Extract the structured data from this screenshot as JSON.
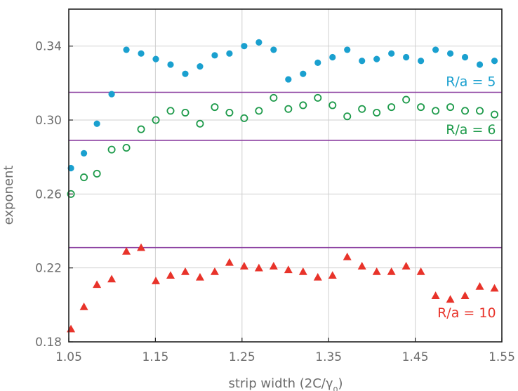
{
  "chart_data": {
    "type": "scatter",
    "title": "",
    "xlabel": "strip width (2C/γ₀)",
    "ylabel": "exponent",
    "xlim": [
      1.05,
      1.55
    ],
    "ylim": [
      0.18,
      0.36
    ],
    "xticks": [
      "1.05",
      "1.15",
      "1.25",
      "1.35",
      "1.45",
      "1.55"
    ],
    "yticks": [
      "0.18",
      "0.22",
      "0.26",
      "0.30",
      "0.34"
    ],
    "grid": true,
    "colors": {
      "axis": "#222222",
      "grid": "#cfcfcf",
      "text": "#6d6d6d",
      "reference_line": "#8b3fa0"
    },
    "reference_lines": [
      0.315,
      0.289,
      0.231
    ],
    "series": [
      {
        "name": "R/a = 5",
        "marker": "filled-circle",
        "color": "#1aa0cf",
        "points": [
          [
            1.0525,
            0.274
          ],
          [
            1.0675,
            0.282
          ],
          [
            1.0825,
            0.298
          ],
          [
            1.0995,
            0.314
          ],
          [
            1.1165,
            0.338
          ],
          [
            1.1335,
            0.336
          ],
          [
            1.1505,
            0.333
          ],
          [
            1.1675,
            0.33
          ],
          [
            1.1845,
            0.325
          ],
          [
            1.2015,
            0.329
          ],
          [
            1.2185,
            0.335
          ],
          [
            1.2355,
            0.336
          ],
          [
            1.2525,
            0.34
          ],
          [
            1.2695,
            0.342
          ],
          [
            1.2865,
            0.338
          ],
          [
            1.3035,
            0.322
          ],
          [
            1.3205,
            0.325
          ],
          [
            1.3375,
            0.331
          ],
          [
            1.3545,
            0.334
          ],
          [
            1.3715,
            0.338
          ],
          [
            1.3885,
            0.332
          ],
          [
            1.4055,
            0.333
          ],
          [
            1.4225,
            0.336
          ],
          [
            1.4395,
            0.334
          ],
          [
            1.4565,
            0.332
          ],
          [
            1.4735,
            0.338
          ],
          [
            1.4905,
            0.336
          ],
          [
            1.5075,
            0.334
          ],
          [
            1.5245,
            0.33
          ],
          [
            1.5415,
            0.332
          ]
        ]
      },
      {
        "name": "R/a = 6",
        "marker": "open-circle",
        "color": "#1d9a4a",
        "points": [
          [
            1.0525,
            0.26
          ],
          [
            1.0675,
            0.269
          ],
          [
            1.0825,
            0.271
          ],
          [
            1.0995,
            0.284
          ],
          [
            1.1165,
            0.285
          ],
          [
            1.1335,
            0.295
          ],
          [
            1.1505,
            0.3
          ],
          [
            1.1675,
            0.305
          ],
          [
            1.1845,
            0.304
          ],
          [
            1.2015,
            0.298
          ],
          [
            1.2185,
            0.307
          ],
          [
            1.2355,
            0.304
          ],
          [
            1.2525,
            0.301
          ],
          [
            1.2695,
            0.305
          ],
          [
            1.2865,
            0.312
          ],
          [
            1.3035,
            0.306
          ],
          [
            1.3205,
            0.308
          ],
          [
            1.3375,
            0.312
          ],
          [
            1.3545,
            0.308
          ],
          [
            1.3715,
            0.302
          ],
          [
            1.3885,
            0.306
          ],
          [
            1.4055,
            0.304
          ],
          [
            1.4225,
            0.307
          ],
          [
            1.4395,
            0.311
          ],
          [
            1.4565,
            0.307
          ],
          [
            1.4735,
            0.305
          ],
          [
            1.4905,
            0.307
          ],
          [
            1.5075,
            0.305
          ],
          [
            1.5245,
            0.305
          ],
          [
            1.5415,
            0.303
          ]
        ]
      },
      {
        "name": "R/a = 10",
        "marker": "filled-triangle",
        "color": "#e8332a",
        "points": [
          [
            1.0525,
            0.187
          ],
          [
            1.0675,
            0.199
          ],
          [
            1.0825,
            0.211
          ],
          [
            1.0995,
            0.214
          ],
          [
            1.1165,
            0.229
          ],
          [
            1.1335,
            0.231
          ],
          [
            1.1505,
            0.213
          ],
          [
            1.1675,
            0.216
          ],
          [
            1.1845,
            0.218
          ],
          [
            1.2015,
            0.215
          ],
          [
            1.2185,
            0.218
          ],
          [
            1.2355,
            0.223
          ],
          [
            1.2525,
            0.221
          ],
          [
            1.2695,
            0.22
          ],
          [
            1.2865,
            0.221
          ],
          [
            1.3035,
            0.219
          ],
          [
            1.3205,
            0.218
          ],
          [
            1.3375,
            0.215
          ],
          [
            1.3545,
            0.216
          ],
          [
            1.3715,
            0.226
          ],
          [
            1.3885,
            0.221
          ],
          [
            1.4055,
            0.218
          ],
          [
            1.4225,
            0.218
          ],
          [
            1.4395,
            0.221
          ],
          [
            1.4565,
            0.218
          ],
          [
            1.4735,
            0.205
          ],
          [
            1.4905,
            0.203
          ],
          [
            1.5075,
            0.205
          ],
          [
            1.5245,
            0.21
          ],
          [
            1.5415,
            0.209
          ]
        ]
      }
    ],
    "annotations": [
      {
        "text": "R/a = 5",
        "series": 0,
        "x": 1.548,
        "y": 0.321
      },
      {
        "text": "R/a = 6",
        "series": 1,
        "x": 1.548,
        "y": 0.295
      },
      {
        "text": "R/a = 10",
        "series": 2,
        "x": 1.548,
        "y": 0.196
      }
    ]
  }
}
